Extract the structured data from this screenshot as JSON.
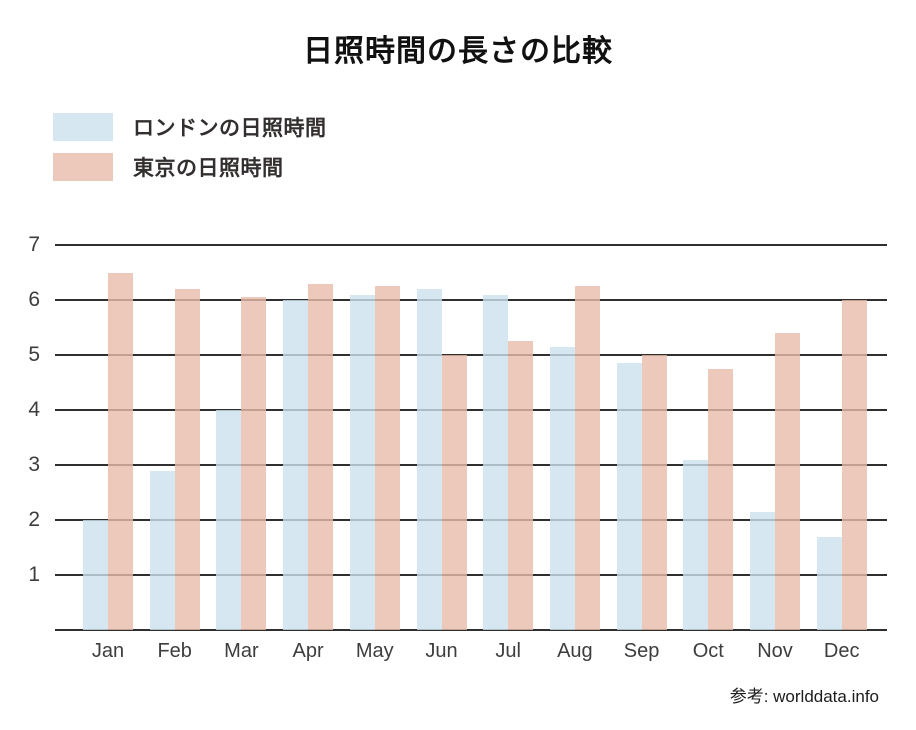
{
  "title": "日照時間の長さの比較",
  "legend": [
    {
      "label": "ロンドンの日照時間",
      "color": "rgba(205,225,238,0.8)"
    },
    {
      "label": "東京の日照時間",
      "color": "rgba(232,188,171,0.8)"
    }
  ],
  "source": "参考: worlddata.info",
  "colors": {
    "london_bar": "rgba(205,225,238,0.8)",
    "tokyo_bar": "rgba(232,188,171,0.8)",
    "gridline": "#2f2f2f",
    "text": "#3d3d3d"
  },
  "chart_data": {
    "type": "bar",
    "title": "日照時間の長さの比較",
    "categories": [
      "Jan",
      "Feb",
      "Mar",
      "Apr",
      "May",
      "Jun",
      "Jul",
      "Aug",
      "Sep",
      "Oct",
      "Nov",
      "Dec"
    ],
    "series": [
      {
        "name": "ロンドンの日照時間",
        "values": [
          2.0,
          2.9,
          4.0,
          6.0,
          6.1,
          6.2,
          6.1,
          5.15,
          4.85,
          3.1,
          2.15,
          1.7
        ]
      },
      {
        "name": "東京の日照時間",
        "values": [
          6.5,
          6.2,
          6.05,
          6.3,
          6.25,
          5.0,
          5.25,
          6.25,
          5.0,
          4.75,
          5.4,
          6.0
        ]
      }
    ],
    "xlabel": "",
    "ylabel": "",
    "yticks": [
      1,
      2,
      3,
      4,
      5,
      6,
      7
    ],
    "ylim": [
      0,
      7
    ],
    "grid": true,
    "legend_position": "top-left",
    "annotation": "参考: worlddata.info"
  }
}
